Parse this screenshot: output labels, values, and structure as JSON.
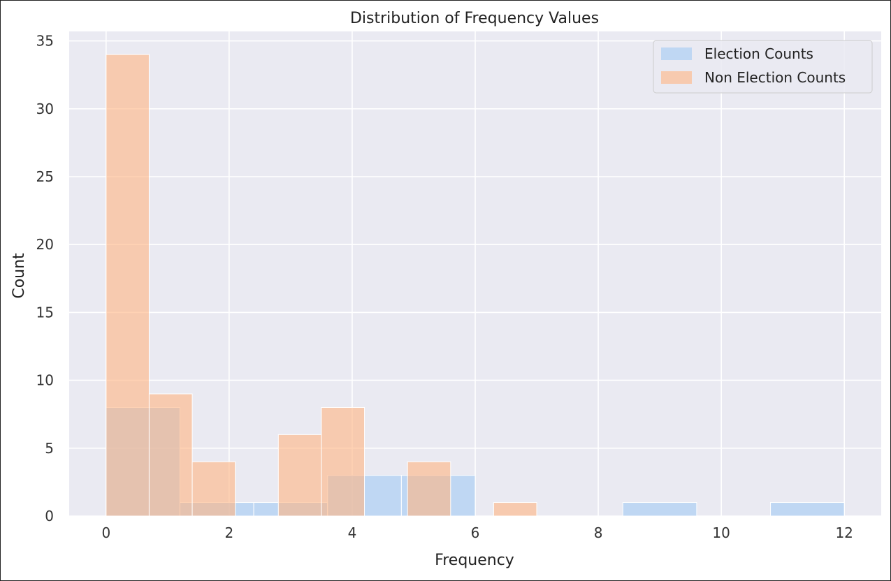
{
  "chart_data": {
    "type": "bar",
    "title": "Distribution of Frequency Values",
    "xlabel": "Frequency",
    "ylabel": "Count",
    "xlim": [
      -0.6,
      12.6
    ],
    "ylim": [
      0,
      35.7
    ],
    "xticks": [
      "0",
      "2",
      "4",
      "6",
      "8",
      "10",
      "12"
    ],
    "yticks": [
      "0",
      "5",
      "10",
      "15",
      "20",
      "25",
      "30",
      "35"
    ],
    "grid": true,
    "legend_position": "top-right",
    "series": [
      {
        "name": "Election Counts",
        "color": "#a1c9f4",
        "bins": [
          {
            "x0": 0.0,
            "x1": 1.2,
            "count": 8
          },
          {
            "x0": 1.2,
            "x1": 2.4,
            "count": 1
          },
          {
            "x0": 2.4,
            "x1": 3.6,
            "count": 1
          },
          {
            "x0": 3.6,
            "x1": 4.8,
            "count": 3
          },
          {
            "x0": 4.8,
            "x1": 6.0,
            "count": 3
          },
          {
            "x0": 6.0,
            "x1": 7.2,
            "count": 0
          },
          {
            "x0": 7.2,
            "x1": 8.4,
            "count": 0
          },
          {
            "x0": 8.4,
            "x1": 9.6,
            "count": 1
          },
          {
            "x0": 9.6,
            "x1": 10.8,
            "count": 0
          },
          {
            "x0": 10.8,
            "x1": 12.0,
            "count": 1
          }
        ]
      },
      {
        "name": "Non Election Counts",
        "color": "#ffb482",
        "bins": [
          {
            "x0": 0.0,
            "x1": 0.7,
            "count": 34
          },
          {
            "x0": 0.7,
            "x1": 1.4,
            "count": 9
          },
          {
            "x0": 1.4,
            "x1": 2.1,
            "count": 4
          },
          {
            "x0": 2.1,
            "x1": 2.8,
            "count": 0
          },
          {
            "x0": 2.8,
            "x1": 3.5,
            "count": 6
          },
          {
            "x0": 3.5,
            "x1": 4.2,
            "count": 8
          },
          {
            "x0": 4.2,
            "x1": 4.9,
            "count": 0
          },
          {
            "x0": 4.9,
            "x1": 5.6,
            "count": 4
          },
          {
            "x0": 5.6,
            "x1": 6.3,
            "count": 0
          },
          {
            "x0": 6.3,
            "x1": 7.0,
            "count": 1
          }
        ]
      }
    ]
  }
}
